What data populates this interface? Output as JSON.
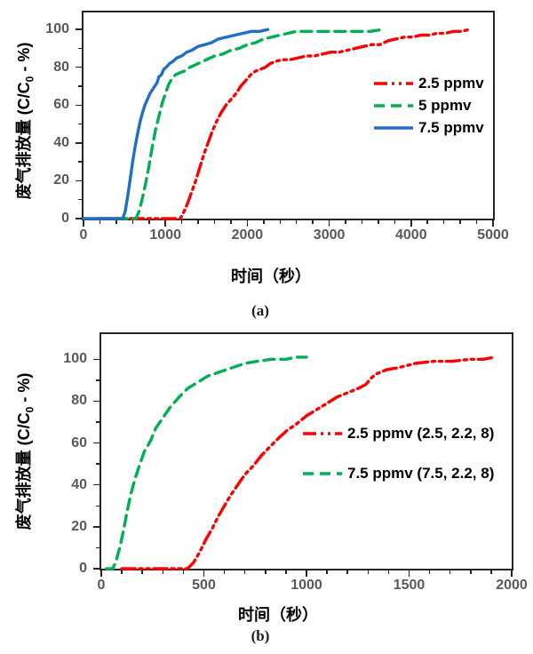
{
  "chart_data": [
    {
      "type": "line",
      "panel": "a",
      "title": "(a)",
      "xlabel": "时间（秒）",
      "ylabel": "废气排放量 (C/C0 - %)",
      "ylabel_prefix": "废气排放量 (C/C",
      "ylabel_sub": "0",
      "ylabel_suffix": " - %)",
      "xlim": [
        0,
        5000
      ],
      "ylim": [
        0,
        100
      ],
      "xticks": [
        0,
        1000,
        2000,
        3000,
        4000,
        5000
      ],
      "yticks": [
        0,
        20,
        40,
        60,
        80,
        100
      ],
      "x_minor_step": 200,
      "y_minor_step": 10,
      "grid": false,
      "legend_position": "inside-right",
      "axis_color": "#262626",
      "tick_label_color": "#595959",
      "series": [
        {
          "name": "2.5 ppmv",
          "color": "#FF0000",
          "style": "dash-dot-dot",
          "points": [
            [
              180,
              0
            ],
            [
              1180,
              0
            ],
            [
              1220,
              3
            ],
            [
              1270,
              8
            ],
            [
              1320,
              14
            ],
            [
              1370,
              20
            ],
            [
              1420,
              27
            ],
            [
              1470,
              34
            ],
            [
              1520,
              40
            ],
            [
              1570,
              46
            ],
            [
              1620,
              51
            ],
            [
              1680,
              56
            ],
            [
              1740,
              60
            ],
            [
              1800,
              63
            ],
            [
              1860,
              66
            ],
            [
              1920,
              70
            ],
            [
              1980,
              73
            ],
            [
              2040,
              76
            ],
            [
              2100,
              78
            ],
            [
              2160,
              79
            ],
            [
              2220,
              80
            ],
            [
              2280,
              82
            ],
            [
              2340,
              83
            ],
            [
              2420,
              84
            ],
            [
              2520,
              84
            ],
            [
              2620,
              85
            ],
            [
              2720,
              86
            ],
            [
              2820,
              86
            ],
            [
              2920,
              87
            ],
            [
              3020,
              88
            ],
            [
              3120,
              88
            ],
            [
              3220,
              89
            ],
            [
              3320,
              90
            ],
            [
              3420,
              91
            ],
            [
              3520,
              92
            ],
            [
              3620,
              92
            ],
            [
              3720,
              94
            ],
            [
              3820,
              95
            ],
            [
              3920,
              96
            ],
            [
              4020,
              96
            ],
            [
              4120,
              97
            ],
            [
              4220,
              97
            ],
            [
              4320,
              98
            ],
            [
              4420,
              98
            ],
            [
              4520,
              99
            ],
            [
              4620,
              99
            ],
            [
              4700,
              100
            ]
          ]
        },
        {
          "name": "5 ppmv",
          "color": "#00B050",
          "style": "dashed",
          "points": [
            [
              400,
              0
            ],
            [
              640,
              0
            ],
            [
              680,
              4
            ],
            [
              720,
              11
            ],
            [
              760,
              19
            ],
            [
              800,
              28
            ],
            [
              840,
              38
            ],
            [
              880,
              47
            ],
            [
              920,
              54
            ],
            [
              960,
              61
            ],
            [
              1000,
              66
            ],
            [
              1040,
              71
            ],
            [
              1080,
              74
            ],
            [
              1120,
              76
            ],
            [
              1170,
              77
            ],
            [
              1230,
              78
            ],
            [
              1300,
              80
            ],
            [
              1400,
              82
            ],
            [
              1500,
              84
            ],
            [
              1600,
              86
            ],
            [
              1700,
              87
            ],
            [
              1800,
              89
            ],
            [
              1900,
              90
            ],
            [
              2000,
              92
            ],
            [
              2100,
              93
            ],
            [
              2200,
              95
            ],
            [
              2300,
              96
            ],
            [
              2400,
              97
            ],
            [
              2500,
              98
            ],
            [
              2600,
              99
            ],
            [
              2750,
              99
            ],
            [
              2900,
              99
            ],
            [
              3050,
              99
            ],
            [
              3200,
              99
            ],
            [
              3350,
              99
            ],
            [
              3500,
              99
            ],
            [
              3650,
              100
            ]
          ]
        },
        {
          "name": "7.5 ppmv",
          "color": "#1F6FC4",
          "style": "solid",
          "points": [
            [
              0,
              0
            ],
            [
              480,
              0
            ],
            [
              510,
              4
            ],
            [
              540,
              12
            ],
            [
              570,
              21
            ],
            [
              600,
              30
            ],
            [
              630,
              38
            ],
            [
              660,
              45
            ],
            [
              690,
              51
            ],
            [
              720,
              56
            ],
            [
              750,
              60
            ],
            [
              780,
              63
            ],
            [
              810,
              66
            ],
            [
              840,
              68
            ],
            [
              870,
              70
            ],
            [
              900,
              72
            ],
            [
              920,
              75
            ],
            [
              950,
              76
            ],
            [
              980,
              79
            ],
            [
              1010,
              80
            ],
            [
              1050,
              82
            ],
            [
              1090,
              83
            ],
            [
              1140,
              85
            ],
            [
              1200,
              86
            ],
            [
              1260,
              88
            ],
            [
              1320,
              89
            ],
            [
              1400,
              91
            ],
            [
              1480,
              92
            ],
            [
              1560,
              93
            ],
            [
              1650,
              95
            ],
            [
              1750,
              96
            ],
            [
              1850,
              97
            ],
            [
              1950,
              98
            ],
            [
              2050,
              99
            ],
            [
              2150,
              99
            ],
            [
              2250,
              100
            ]
          ]
        }
      ]
    },
    {
      "type": "line",
      "panel": "b",
      "title": "(b)",
      "xlabel": "时间（秒）",
      "ylabel": "废气排放量 (C/C0 - %)",
      "ylabel_prefix": "废气排放量 (C/C",
      "ylabel_sub": "0",
      "ylabel_suffix": " - %)",
      "xlim": [
        0,
        2000
      ],
      "ylim": [
        0,
        100
      ],
      "xticks": [
        0,
        500,
        1000,
        1500,
        2000
      ],
      "yticks": [
        0,
        20,
        40,
        60,
        80,
        100
      ],
      "x_minor_step": 100,
      "y_minor_step": 10,
      "grid": false,
      "legend_position": "inside-right",
      "axis_color": "#262626",
      "tick_label_color": "#595959",
      "series": [
        {
          "name": "2.5 ppmv (2.5, 2.2, 8)",
          "color": "#FF0000",
          "style": "dash-dot-dot",
          "points": [
            [
              100,
              0
            ],
            [
              420,
              0
            ],
            [
              450,
              3
            ],
            [
              480,
              8
            ],
            [
              510,
              14
            ],
            [
              540,
              19
            ],
            [
              570,
              25
            ],
            [
              600,
              30
            ],
            [
              630,
              35
            ],
            [
              665,
              40
            ],
            [
              700,
              45
            ],
            [
              740,
              49
            ],
            [
              780,
              54
            ],
            [
              820,
              58
            ],
            [
              860,
              62
            ],
            [
              905,
              66
            ],
            [
              950,
              69
            ],
            [
              1000,
              73
            ],
            [
              1050,
              76
            ],
            [
              1100,
              79
            ],
            [
              1150,
              82
            ],
            [
              1200,
              84
            ],
            [
              1250,
              86
            ],
            [
              1290,
              88
            ],
            [
              1315,
              91
            ],
            [
              1340,
              93
            ],
            [
              1390,
              95
            ],
            [
              1450,
              96
            ],
            [
              1530,
              98
            ],
            [
              1620,
              99
            ],
            [
              1710,
              99
            ],
            [
              1800,
              100
            ],
            [
              1860,
              100
            ],
            [
              1920,
              101
            ]
          ]
        },
        {
          "name": "7.5 ppmv (7.5, 2.2, 8)",
          "color": "#00B050",
          "style": "dashed",
          "points": [
            [
              25,
              0
            ],
            [
              55,
              0
            ],
            [
              70,
              3
            ],
            [
              90,
              10
            ],
            [
              110,
              19
            ],
            [
              125,
              27
            ],
            [
              145,
              36
            ],
            [
              165,
              43
            ],
            [
              185,
              49
            ],
            [
              210,
              56
            ],
            [
              240,
              61
            ],
            [
              265,
              67
            ],
            [
              300,
              72
            ],
            [
              335,
              77
            ],
            [
              380,
              82
            ],
            [
              420,
              86
            ],
            [
              470,
              89
            ],
            [
              520,
              92
            ],
            [
              580,
              94
            ],
            [
              640,
              96
            ],
            [
              700,
              98
            ],
            [
              760,
              99
            ],
            [
              830,
              100
            ],
            [
              900,
              100
            ],
            [
              950,
              101
            ],
            [
              1000,
              101
            ]
          ]
        }
      ]
    }
  ]
}
